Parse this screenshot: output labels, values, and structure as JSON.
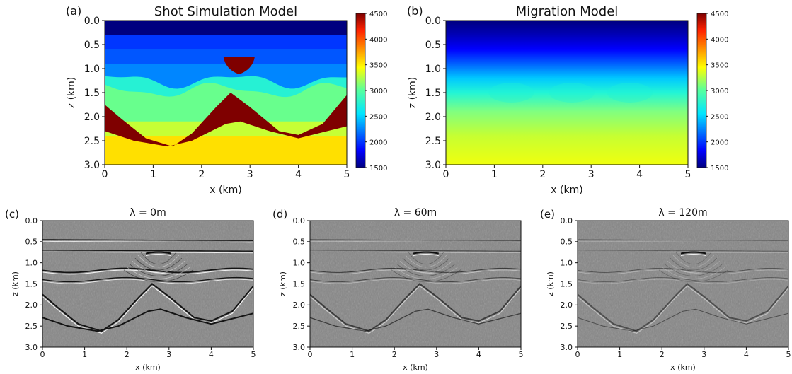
{
  "chart_data": [
    {
      "panel": "(a)",
      "type": "heatmap",
      "title": "Shot Simulation Model",
      "xlabel": "x (km)",
      "ylabel": "z (km)",
      "xlim": [
        0,
        5
      ],
      "ylim": [
        3.0,
        0.0
      ],
      "xticks": [
        "0",
        "1",
        "2",
        "3",
        "4",
        "5"
      ],
      "yticks": [
        "0.0",
        "0.5",
        "1.0",
        "1.5",
        "2.0",
        "2.5",
        "3.0"
      ],
      "colorbar": {
        "min": 1500,
        "max": 4500,
        "ticks": [
          "1500",
          "2000",
          "2500",
          "3000",
          "3500",
          "4000",
          "4500"
        ],
        "colormap": "jet"
      },
      "layers": [
        {
          "top_z": 0.0,
          "velocity": 1500
        },
        {
          "top_z": 0.3,
          "velocity": 2000
        },
        {
          "top_z": 0.6,
          "velocity": 2100
        },
        {
          "top_z": 0.9,
          "velocity": 2250
        },
        {
          "top_z": 1.25,
          "velocity": 2750,
          "note": "undulating"
        },
        {
          "top_z": 1.45,
          "velocity": 3050,
          "note": "undulating"
        },
        {
          "top_z": 2.1,
          "velocity": 3300
        },
        {
          "top_z": 2.4,
          "velocity": 3550
        }
      ],
      "salt_body_velocity": 4500,
      "salt_lens": {
        "x_range": [
          2.45,
          3.1
        ],
        "z_range": [
          0.75,
          1.12
        ]
      },
      "salt_ridge_top": [
        [
          0.0,
          1.75
        ],
        [
          0.35,
          2.05
        ],
        [
          0.85,
          2.45
        ],
        [
          1.4,
          2.62
        ],
        [
          1.8,
          2.35
        ],
        [
          2.3,
          1.8
        ],
        [
          2.6,
          1.5
        ],
        [
          3.0,
          1.8
        ],
        [
          3.6,
          2.3
        ],
        [
          4.0,
          2.38
        ],
        [
          4.5,
          2.15
        ],
        [
          5.0,
          1.55
        ]
      ],
      "salt_ridge_base": [
        [
          0.0,
          2.3
        ],
        [
          0.6,
          2.5
        ],
        [
          1.3,
          2.62
        ],
        [
          1.8,
          2.5
        ],
        [
          2.5,
          2.15
        ],
        [
          2.8,
          2.1
        ],
        [
          3.4,
          2.3
        ],
        [
          4.0,
          2.45
        ],
        [
          4.6,
          2.3
        ],
        [
          5.0,
          2.2
        ]
      ]
    },
    {
      "panel": "(b)",
      "type": "heatmap",
      "title": "Migration Model",
      "xlabel": "x (km)",
      "ylabel": "z (km)",
      "xlim": [
        0,
        5
      ],
      "ylim": [
        3.0,
        0.0
      ],
      "xticks": [
        "0",
        "1",
        "2",
        "3",
        "4",
        "5"
      ],
      "yticks": [
        "0.0",
        "0.5",
        "1.0",
        "1.5",
        "2.0",
        "2.5",
        "3.0"
      ],
      "colorbar": {
        "min": 1500,
        "max": 4500,
        "ticks": [
          "1500",
          "2000",
          "2500",
          "3000",
          "3500",
          "4000",
          "4500"
        ],
        "colormap": "jet"
      },
      "velocity_profile": [
        [
          0.0,
          1500
        ],
        [
          0.3,
          1700
        ],
        [
          0.6,
          2000
        ],
        [
          0.9,
          2350
        ],
        [
          1.2,
          2650
        ],
        [
          1.5,
          2950
        ],
        [
          1.9,
          3150
        ],
        [
          2.4,
          3350
        ],
        [
          3.0,
          3550
        ]
      ]
    },
    {
      "panel": "(c)",
      "type": "heatmap",
      "title": "λ = 0m",
      "xlabel": "x (km)",
      "ylabel": "z (km)",
      "xlim": [
        0,
        5
      ],
      "ylim": [
        3.0,
        0.0
      ],
      "xticks": [
        "0",
        "1",
        "2",
        "3",
        "4",
        "5"
      ],
      "yticks": [
        "0.0",
        "0.5",
        "1.0",
        "1.5",
        "2.0",
        "2.5",
        "3.0"
      ],
      "colormap": "gray",
      "reflector_strength": 1.0
    },
    {
      "panel": "(d)",
      "type": "heatmap",
      "title": "λ = 60m",
      "xlabel": "x (km)",
      "ylabel": "z (km)",
      "xlim": [
        0,
        5
      ],
      "ylim": [
        3.0,
        0.0
      ],
      "xticks": [
        "0",
        "1",
        "2",
        "3",
        "4",
        "5"
      ],
      "yticks": [
        "0.0",
        "0.5",
        "1.0",
        "1.5",
        "2.0",
        "2.5",
        "3.0"
      ],
      "colormap": "gray",
      "reflector_strength": 0.55
    },
    {
      "panel": "(e)",
      "type": "heatmap",
      "title": "λ = 120m",
      "xlabel": "x (km)",
      "ylabel": "z (km)",
      "xlim": [
        0,
        5
      ],
      "ylim": [
        3.0,
        0.0
      ],
      "xticks": [
        "0",
        "1",
        "2",
        "3",
        "4",
        "5"
      ],
      "yticks": [
        "0.0",
        "0.5",
        "1.0",
        "1.5",
        "2.0",
        "2.5",
        "3.0"
      ],
      "colormap": "gray",
      "reflector_strength": 0.4
    }
  ]
}
